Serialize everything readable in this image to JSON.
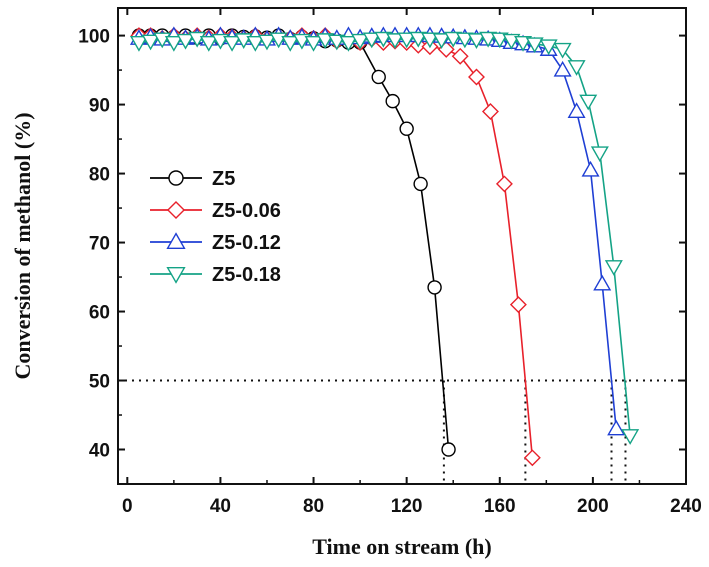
{
  "chart_data": {
    "type": "line",
    "xlabel": "Time on stream (h)",
    "ylabel": "Conversion of methanol (%)",
    "xlim": [
      -4,
      240
    ],
    "ylim": [
      35,
      104
    ],
    "xticks": [
      0,
      40,
      80,
      120,
      160,
      200,
      240
    ],
    "yticks": [
      40,
      50,
      60,
      70,
      80,
      90,
      100
    ],
    "grid": false,
    "legend_position": "center-left",
    "reference_lines": {
      "y": 50,
      "x_intercepts": [
        136,
        171,
        208,
        214
      ]
    },
    "series": [
      {
        "name": "Z5",
        "marker": "circle",
        "color": "#000000",
        "x": [
          5,
          10,
          15,
          20,
          25,
          30,
          35,
          40,
          45,
          50,
          55,
          60,
          65,
          70,
          75,
          80,
          85,
          90,
          95,
          100,
          108,
          114,
          120,
          126,
          132,
          138
        ],
        "y": [
          100,
          100,
          100,
          99.8,
          100,
          99.7,
          100,
          99.6,
          100,
          99.8,
          99.9,
          99.7,
          100,
          99.5,
          99.8,
          99.6,
          99.2,
          99.3,
          99.0,
          99.0,
          94.0,
          90.5,
          86.5,
          78.5,
          63.5,
          40.0
        ]
      },
      {
        "name": "Z5-0.06",
        "marker": "diamond",
        "color": "#e8212b",
        "x": [
          5,
          10,
          15,
          20,
          25,
          30,
          35,
          40,
          45,
          50,
          55,
          60,
          65,
          70,
          75,
          80,
          85,
          90,
          95,
          100,
          105,
          110,
          115,
          120,
          125,
          130,
          137,
          143,
          150,
          156,
          162,
          168,
          174
        ],
        "y": [
          100,
          100,
          99.6,
          100,
          99.6,
          100,
          99.7,
          100,
          99.8,
          99.6,
          100,
          99.5,
          99.8,
          99.6,
          100,
          99.6,
          100,
          99.2,
          99.6,
          99.0,
          99.5,
          99.0,
          99.2,
          99.0,
          98.6,
          98.4,
          98.0,
          97.0,
          94.0,
          89.0,
          78.5,
          61.0,
          38.8
        ]
      },
      {
        "name": "Z5-0.12",
        "marker": "triangle-up",
        "color": "#1f3fd4",
        "x": [
          5,
          10,
          15,
          20,
          25,
          30,
          35,
          40,
          45,
          50,
          55,
          60,
          65,
          70,
          75,
          80,
          85,
          90,
          95,
          100,
          105,
          110,
          115,
          120,
          125,
          130,
          135,
          140,
          145,
          150,
          155,
          160,
          165,
          170,
          175,
          181,
          187,
          193,
          199,
          204,
          210
        ],
        "y": [
          99.6,
          99.8,
          99.5,
          100,
          99.6,
          99.8,
          99.5,
          100,
          99.7,
          99.6,
          100,
          99.5,
          100,
          99.6,
          99.8,
          99.5,
          99.9,
          99.6,
          100,
          99.7,
          99.9,
          100,
          100,
          100,
          100,
          100,
          99.9,
          99.8,
          99.7,
          99.6,
          99.5,
          99.3,
          99.0,
          98.8,
          98.5,
          98.0,
          95.0,
          89.0,
          80.5,
          64.0,
          43.0
        ]
      },
      {
        "name": "Z5-0.18",
        "marker": "triangle-down",
        "color": "#14a386",
        "x": [
          5,
          10,
          15,
          20,
          25,
          30,
          35,
          40,
          45,
          50,
          55,
          60,
          65,
          70,
          75,
          80,
          85,
          90,
          95,
          100,
          105,
          110,
          115,
          120,
          125,
          130,
          135,
          140,
          145,
          150,
          155,
          160,
          165,
          170,
          175,
          181,
          187,
          193,
          198,
          203,
          209,
          216
        ],
        "y": [
          99.0,
          99.2,
          99.5,
          99.0,
          99.3,
          99.6,
          99.0,
          99.3,
          99.0,
          99.4,
          99.0,
          99.2,
          99.5,
          99.0,
          99.3,
          99.0,
          99.4,
          99.2,
          99.0,
          99.3,
          99.5,
          99.6,
          99.4,
          99.5,
          99.6,
          99.5,
          99.4,
          99.6,
          99.5,
          99.4,
          99.6,
          99.5,
          99.3,
          99.0,
          98.8,
          98.5,
          98.0,
          95.5,
          90.5,
          83.0,
          66.5,
          42.0
        ]
      }
    ]
  }
}
